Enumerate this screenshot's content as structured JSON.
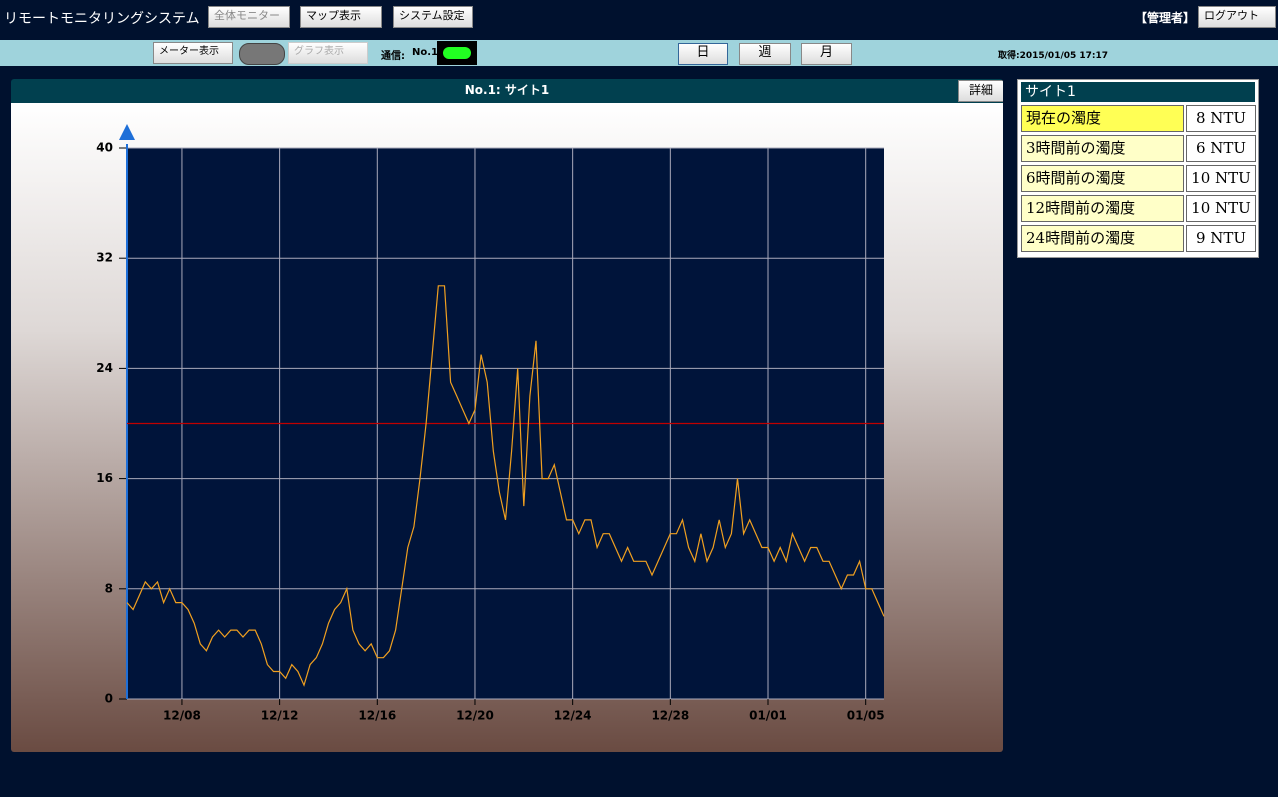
{
  "header": {
    "title": "リモートモニタリングシステム",
    "buttons": [
      "全体モニター",
      "マップ表示",
      "システム設定"
    ],
    "user": "【管理者】",
    "logout": "ログアウト"
  },
  "toolbar": {
    "meter": "メーター表示",
    "graph": "グラフ表示",
    "comm_label": "通信:",
    "comm_id": "No.1",
    "ranges": [
      "日",
      "週",
      "月"
    ],
    "acquired": "取得:2015/01/05 17:17"
  },
  "panel": {
    "title": "No.1: サイト1",
    "detail": "詳細"
  },
  "chart_data": {
    "type": "line",
    "values": [
      7,
      6.5,
      7.5,
      8.5,
      8,
      8.5,
      7,
      8,
      7,
      7,
      6.5,
      5.5,
      4,
      3.5,
      4.5,
      5,
      4.5,
      5,
      5,
      4.5,
      5,
      5,
      4,
      2.5,
      2,
      2,
      1.5,
      2.5,
      2,
      1,
      2.5,
      3,
      4,
      5.5,
      6.5,
      7,
      8,
      5,
      4,
      3.5,
      4,
      3,
      3,
      3.5,
      5,
      8,
      11,
      12.5,
      16,
      20,
      25,
      30,
      30,
      23,
      22,
      21,
      20,
      21,
      25,
      23,
      18,
      15,
      13,
      18,
      24,
      14,
      22,
      26,
      16,
      16,
      17,
      15,
      13,
      13,
      12,
      13,
      13,
      11,
      12,
      12,
      11,
      10,
      11,
      10,
      10,
      10,
      9,
      10,
      11,
      12,
      12,
      13,
      11,
      10,
      12,
      10,
      11,
      13,
      11,
      12,
      16,
      12,
      13,
      12,
      11,
      11,
      10,
      11,
      10,
      12,
      11,
      10,
      11,
      11,
      10,
      10,
      9,
      8,
      9,
      9,
      10,
      8,
      8,
      7,
      6
    ],
    "color": "#f0a020",
    "xlim": [
      0,
      124
    ],
    "xticks": [
      {
        "value": 9,
        "label": "12/08"
      },
      {
        "value": 25,
        "label": "12/12"
      },
      {
        "value": 41,
        "label": "12/16"
      },
      {
        "value": 57,
        "label": "12/20"
      },
      {
        "value": 73,
        "label": "12/24"
      },
      {
        "value": 89,
        "label": "12/28"
      },
      {
        "value": 105,
        "label": "01/01"
      },
      {
        "value": 121,
        "label": "01/05"
      }
    ],
    "ylim": [
      0,
      40
    ],
    "yticks": [
      0,
      8,
      16,
      24,
      32,
      40
    ],
    "threshold": 20,
    "threshold_color": "#c00000",
    "grid": true
  },
  "side_table": {
    "title": "サイト1",
    "rows": [
      [
        "現在の濁度",
        "8 NTU"
      ],
      [
        "3時間前の濁度",
        "6 NTU"
      ],
      [
        "6時間前の濁度",
        "10 NTU"
      ],
      [
        "12時間前の濁度",
        "10 NTU"
      ],
      [
        "24時間前の濁度",
        "9 NTU"
      ]
    ]
  }
}
